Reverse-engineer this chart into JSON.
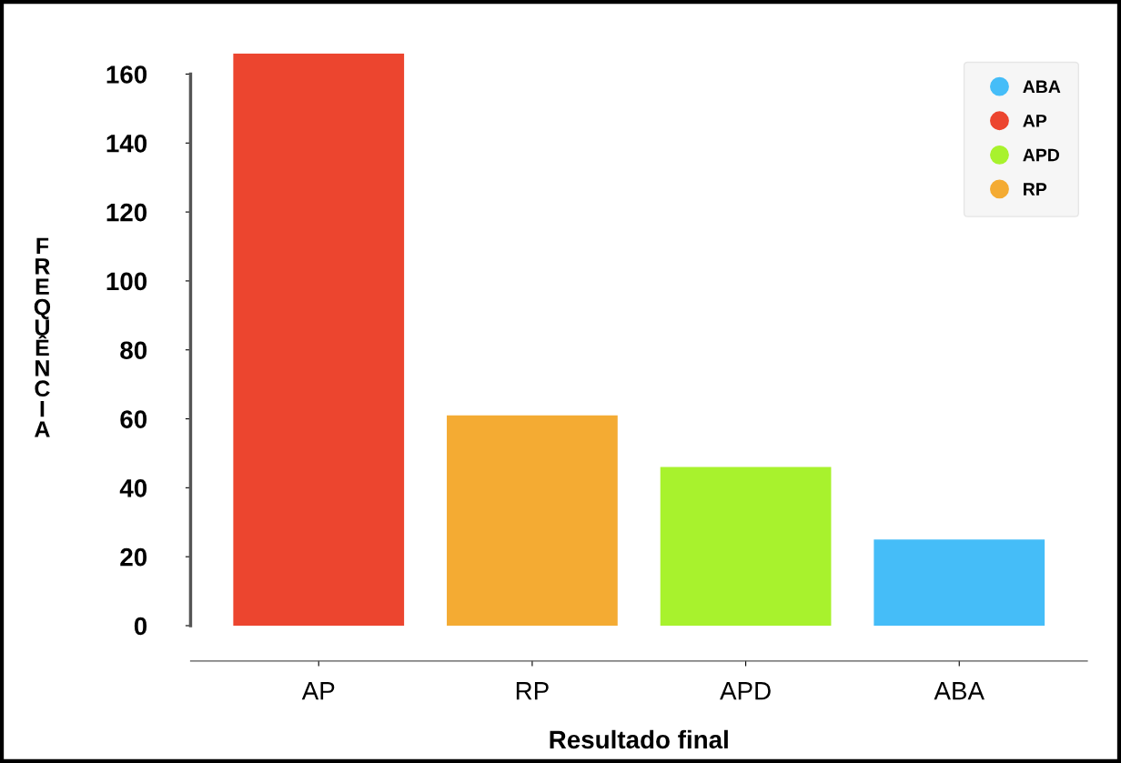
{
  "chart_data": {
    "type": "bar",
    "xlabel": "Resultado final",
    "ylabel": "FREQUÊNCIA",
    "categories": [
      "AP",
      "RP",
      "APD",
      "ABA"
    ],
    "series": [
      {
        "name": "ABA",
        "color": "#45bdf8",
        "values": [
          null,
          null,
          null,
          25
        ]
      },
      {
        "name": "AP",
        "color": "#ec452f",
        "values": [
          166,
          null,
          null,
          null
        ]
      },
      {
        "name": "APD",
        "color": "#a8f22d",
        "values": [
          null,
          null,
          46,
          null
        ]
      },
      {
        "name": "RP",
        "color": "#f4ab33",
        "values": [
          null,
          61,
          null,
          null
        ]
      }
    ],
    "ylim": [
      0,
      166
    ],
    "yticks": [
      0,
      20,
      40,
      60,
      80,
      100,
      120,
      140,
      160
    ],
    "legend": "top right",
    "grid": false
  }
}
